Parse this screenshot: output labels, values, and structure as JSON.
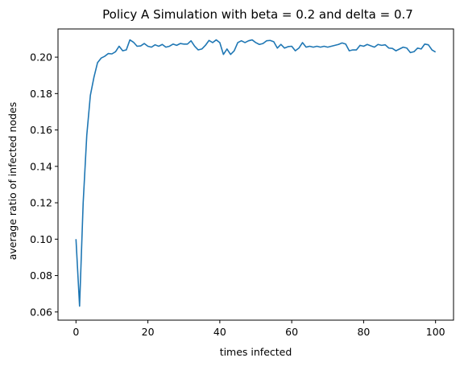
{
  "chart_data": {
    "type": "line",
    "title": "Policy A Simulation with beta = 0.2 and delta = 0.7",
    "xlabel": "times infected",
    "ylabel": "average ratio of infected nodes",
    "xlim": [
      -5,
      105
    ],
    "ylim": [
      0.0555,
      0.2155
    ],
    "xticks": [
      0,
      20,
      40,
      60,
      80,
      100
    ],
    "yticks": [
      0.06,
      0.08,
      0.1,
      0.12,
      0.14,
      0.16,
      0.18,
      0.2
    ],
    "ytick_labels": [
      "0.06",
      "0.08",
      "0.10",
      "0.12",
      "0.14",
      "0.16",
      "0.18",
      "0.20"
    ],
    "grid": false,
    "series": [
      {
        "color": "#1f77b4",
        "x": [
          0,
          1,
          2,
          3,
          4,
          5,
          6,
          7,
          8,
          9,
          10,
          11,
          12,
          13,
          14,
          15,
          16,
          17,
          18,
          19,
          20,
          21,
          22,
          23,
          24,
          25,
          26,
          27,
          28,
          29,
          30,
          31,
          32,
          33,
          34,
          35,
          36,
          37,
          38,
          39,
          40,
          41,
          42,
          43,
          44,
          45,
          46,
          47,
          48,
          49,
          50,
          51,
          52,
          53,
          54,
          55,
          56,
          57,
          58,
          59,
          60,
          61,
          62,
          63,
          64,
          65,
          66,
          67,
          68,
          69,
          70,
          71,
          72,
          73,
          74,
          75,
          76,
          77,
          78,
          79,
          80,
          81,
          82,
          83,
          84,
          85,
          86,
          87,
          88,
          89,
          90,
          91,
          92,
          93,
          94,
          95,
          96,
          97,
          98,
          99,
          100
        ],
        "y": [
          0.1,
          0.0632,
          0.12,
          0.157,
          0.179,
          0.189,
          0.197,
          0.1995,
          0.2005,
          0.202,
          0.2018,
          0.203,
          0.206,
          0.2035,
          0.204,
          0.2095,
          0.2082,
          0.206,
          0.2062,
          0.2075,
          0.206,
          0.2055,
          0.2068,
          0.206,
          0.207,
          0.2055,
          0.206,
          0.2072,
          0.2065,
          0.2075,
          0.2072,
          0.2072,
          0.209,
          0.206,
          0.204,
          0.2045,
          0.2065,
          0.2092,
          0.208,
          0.2095,
          0.208,
          0.2015,
          0.2045,
          0.2015,
          0.2035,
          0.208,
          0.209,
          0.208,
          0.209,
          0.2095,
          0.208,
          0.207,
          0.2075,
          0.209,
          0.2092,
          0.2085,
          0.205,
          0.207,
          0.205,
          0.2058,
          0.206,
          0.2035,
          0.205,
          0.208,
          0.2055,
          0.206,
          0.2055,
          0.206,
          0.2055,
          0.206,
          0.2055,
          0.206,
          0.2065,
          0.207,
          0.2078,
          0.2072,
          0.2035,
          0.204,
          0.204,
          0.2065,
          0.206,
          0.207,
          0.2062,
          0.2055,
          0.207,
          0.2065,
          0.2068,
          0.205,
          0.2048,
          0.2035,
          0.2045,
          0.2055,
          0.205,
          0.2025,
          0.203,
          0.205,
          0.2045,
          0.2072,
          0.2068,
          0.204,
          0.2028
        ]
      }
    ]
  }
}
